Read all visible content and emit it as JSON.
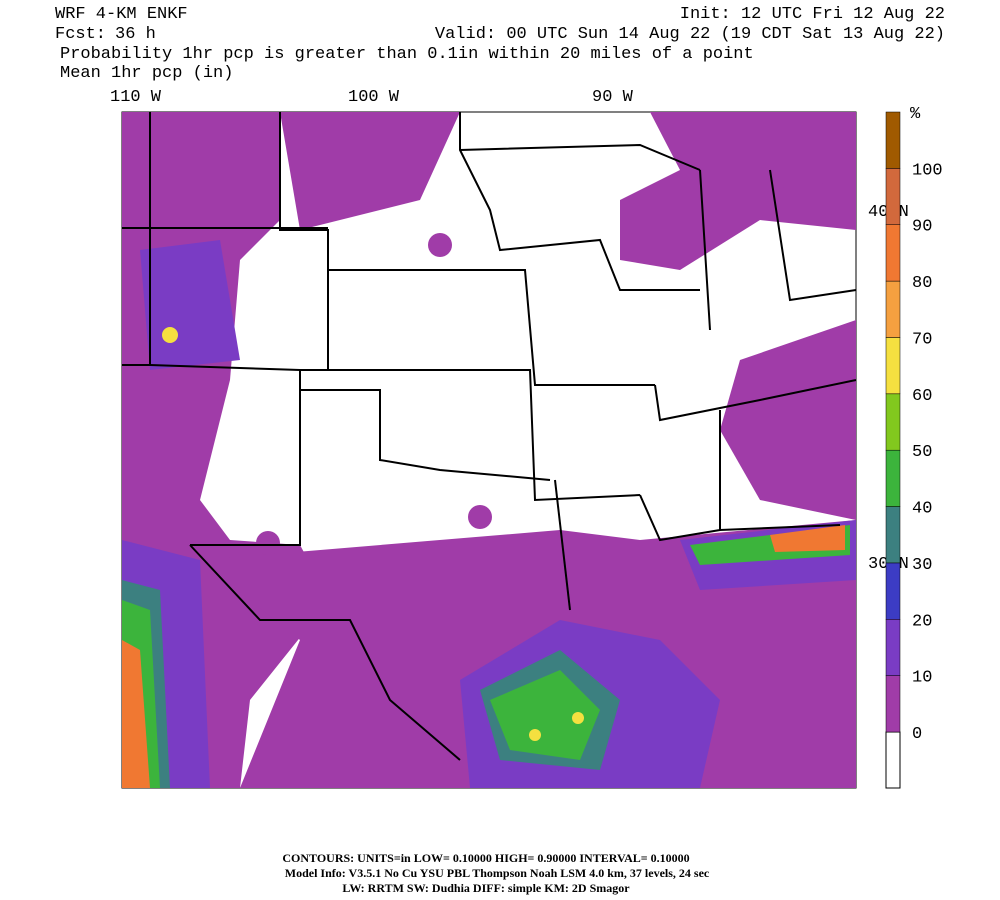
{
  "header": {
    "model": "WRF 4-KM ENKF",
    "init": "Init: 12 UTC Fri 12 Aug 22",
    "fcst_label": "Fcst:",
    "fcst_value": "36 h",
    "valid": "Valid: 00 UTC Sun 14 Aug 22 (19 CDT Sat 13 Aug 22)",
    "product": "Probability 1hr pcp is greater than 0.1in within 20 miles of a point",
    "overlay": "Mean 1hr pcp (in)"
  },
  "map": {
    "lon_labels": [
      "110 W",
      "100 W",
      "90 W"
    ],
    "lat_labels": [
      "40 N",
      "30 N"
    ]
  },
  "colorbar": {
    "unit": "%",
    "labels": [
      "0",
      "10",
      "20",
      "30",
      "40",
      "50",
      "60",
      "70",
      "80",
      "90",
      "100"
    ],
    "colors": [
      "#a03ca8",
      "#7a3cc4",
      "#3c3cc4",
      "#3c8080",
      "#3cb43c",
      "#82c81e",
      "#f5e040",
      "#f5a040",
      "#f07832",
      "#d2693c",
      "#a05a00"
    ]
  },
  "footer": {
    "contours": "CONTOURS:  UNITS=in  LOW= 0.10000     HIGH= 0.90000     INTERVAL=  0.10000",
    "model_info": "Model Info: V3.5.1    No Cu    YSU PBL  Thompson     Noah LSM  4.0 km,  37 levels,    24 sec",
    "physics": "LW: RRTM SW: Dudhia  DIFF: simple KM: 2D Smagor"
  }
}
